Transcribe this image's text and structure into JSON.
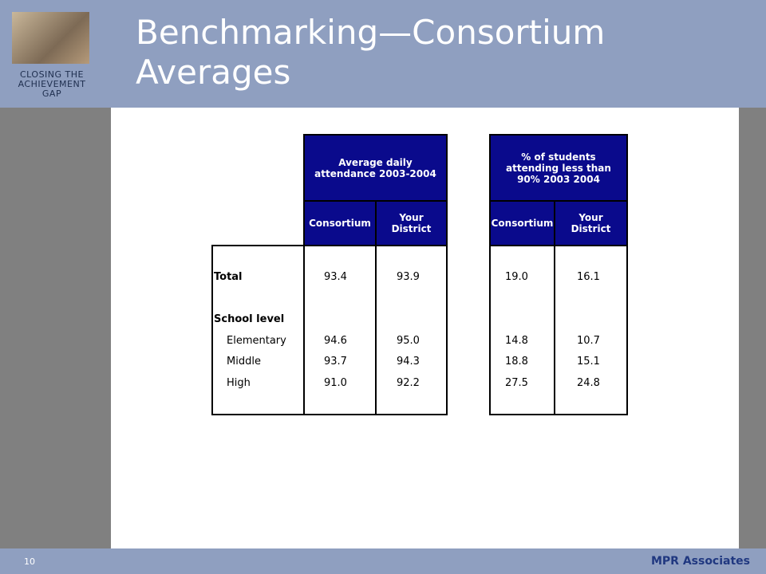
{
  "header": {
    "title": "Benchmarking—Consortium Averages",
    "logo_text": "CLOSING THE ACHIEVEMENT GAP"
  },
  "table": {
    "groups": [
      {
        "title": "Average daily attendance 2003-2004",
        "columns": [
          "Consortium",
          "Your District"
        ]
      },
      {
        "title": "% of students attending less than 90% 2003 2004",
        "columns": [
          "Consortium",
          "Your District"
        ]
      }
    ],
    "rows": [
      {
        "label": "Total",
        "values": [
          "93.4",
          "93.9",
          "19.0",
          "16.1"
        ]
      },
      {
        "label": "School level"
      },
      {
        "label": "Elementary",
        "values": [
          "94.6",
          "95.0",
          "14.8",
          "10.7"
        ]
      },
      {
        "label": "Middle",
        "values": [
          "93.7",
          "94.3",
          "18.8",
          "15.1"
        ]
      },
      {
        "label": "High",
        "values": [
          "91.0",
          "92.2",
          "27.5",
          "24.8"
        ]
      }
    ]
  },
  "footer": {
    "page": "10",
    "organization": "MPR Associates"
  }
}
